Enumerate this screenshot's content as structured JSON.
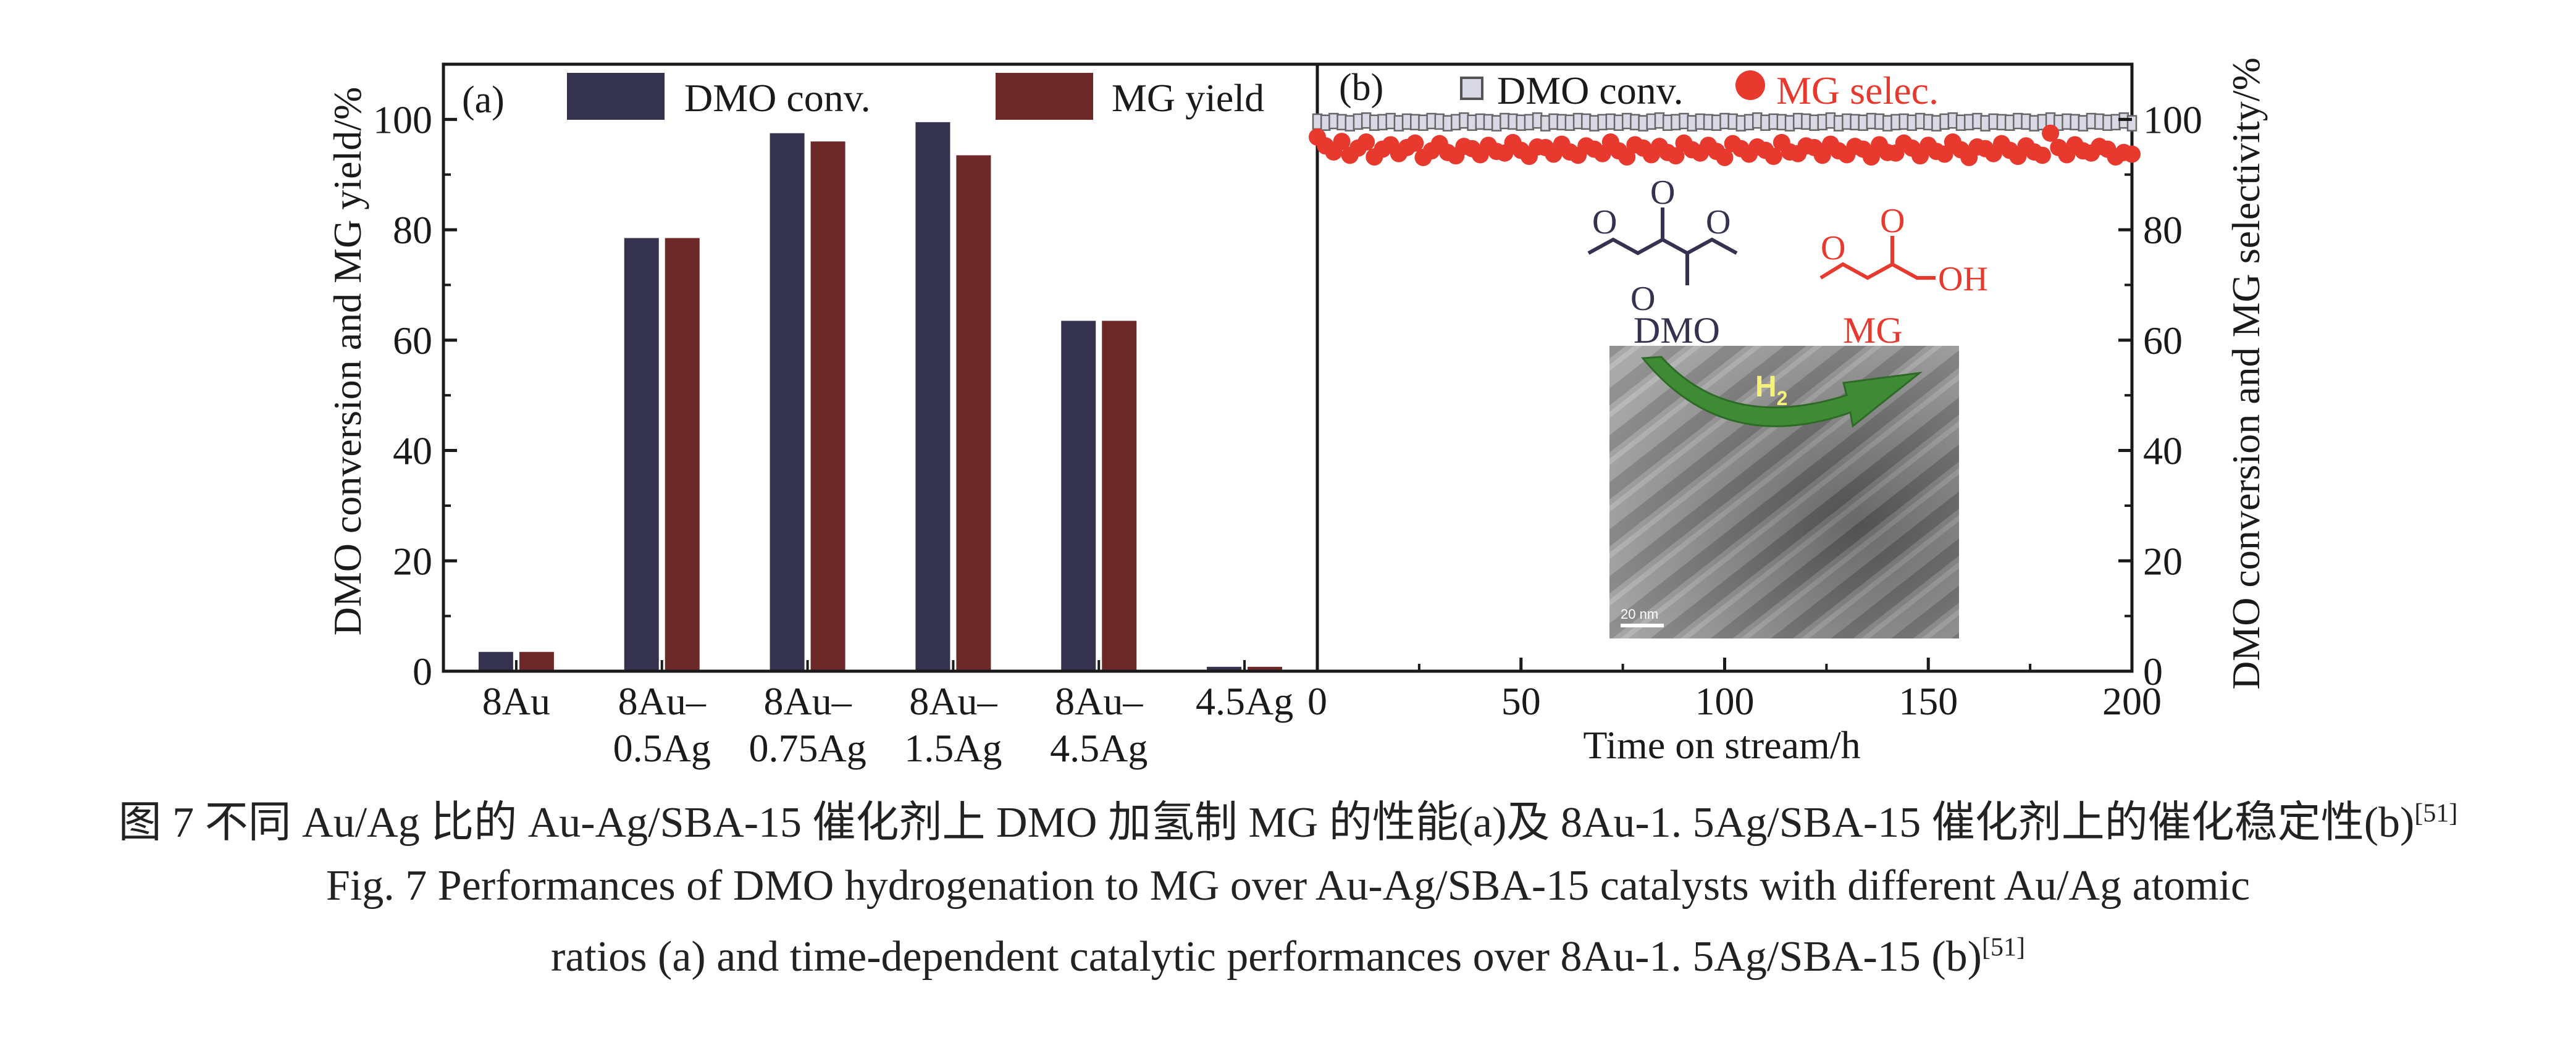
{
  "colors": {
    "dmo": "#35324f",
    "mg": "#6d2828",
    "mg_selec": "#e8392e",
    "dmo_marker_fill": "#d9d9e6",
    "axis": "#1a1a1a",
    "arrow": "#3f8a35"
  },
  "panel_a": {
    "label": "(a)",
    "ylabel": "DMO conversion and MG yield/%",
    "legend": [
      "DMO conv.",
      "MG yield"
    ]
  },
  "panel_b": {
    "label": "(b)",
    "xlabel": "Time on stream/h",
    "ylabel": "DMO conversion and MG selectivity/%",
    "legend": [
      "DMO conv.",
      "MG selec."
    ],
    "inset": {
      "dmo_label": "DMO",
      "mg_label": "MG",
      "mg_oh_label": "OH",
      "o_label": "O",
      "h2_label": "H",
      "h2_sub": "2",
      "scale_label": "20 nm"
    }
  },
  "caption": {
    "cn": "图 7   不同 Au/Ag 比的 Au-Ag/SBA-15 催化剂上 DMO 加氢制 MG 的性能(a)及 8Au-1. 5Ag/SBA-15 催化剂上的催化稳定性(b)",
    "cn_ref": "[51]",
    "en_line1": "Fig. 7  Performances of DMO hydrogenation to MG over Au-Ag/SBA-15 catalysts with different Au/Ag atomic",
    "en_line2": "ratios (a) and time-dependent catalytic performances over 8Au-1. 5Ag/SBA-15 (b)",
    "en_ref": "[51]"
  },
  "chart_data": [
    {
      "type": "bar",
      "panel": "a",
      "categories": [
        "8Au",
        "8Au–\n0.5Ag",
        "8Au–\n0.75Ag",
        "8Au–\n1.5Ag",
        "8Au–\n4.5Ag",
        "4.5Ag"
      ],
      "series": [
        {
          "name": "DMO conv.",
          "values": [
            3.5,
            78.5,
            97.5,
            99.5,
            63.5,
            0.8
          ]
        },
        {
          "name": "MG yield",
          "values": [
            3.5,
            78.5,
            96.0,
            93.5,
            63.5,
            0.8
          ]
        }
      ],
      "ylim": [
        0,
        110
      ],
      "yticks": [
        0,
        20,
        40,
        60,
        80,
        100
      ],
      "ytick_labels": [
        "0",
        "20",
        "40",
        "60",
        "80",
        "100"
      ],
      "ylabel": "DMO conversion and MG yield/%",
      "legend_position": "top"
    },
    {
      "type": "scatter",
      "panel": "b",
      "x_range": [
        0,
        200
      ],
      "xticks": [
        0,
        50,
        100,
        150,
        200
      ],
      "xtick_labels": [
        "0",
        "50",
        "100",
        "150",
        "200"
      ],
      "ylim": [
        0,
        110
      ],
      "yticks": [
        0,
        20,
        40,
        60,
        80,
        100
      ],
      "ytick_labels": [
        "0",
        "20",
        "40",
        "60",
        "80",
        "100"
      ],
      "xlabel": "Time on stream/h",
      "ylabel": "DMO conversion and MG selectivity/%",
      "legend_position": "top",
      "series": [
        {
          "name": "DMO conv.",
          "marker": "square",
          "sample_interval_h": 2,
          "approx_value": 99.5,
          "values": [
            99.6,
            99.4,
            99.7,
            99.5,
            99.3,
            99.6,
            99.8,
            99.4,
            99.5,
            99.7,
            99.3,
            99.6,
            99.5,
            99.4,
            99.7,
            99.6,
            99.3,
            99.5,
            99.8,
            99.4,
            99.6,
            99.5,
            99.3,
            99.7,
            99.6,
            99.4,
            99.5,
            99.8,
            99.3,
            99.6,
            99.5,
            99.4,
            99.7,
            99.6,
            99.3,
            99.5,
            99.6,
            99.4,
            99.7,
            99.5,
            99.3,
            99.6,
            99.8,
            99.4,
            99.5,
            99.7,
            99.3,
            99.6,
            99.5,
            99.4,
            99.7,
            99.6,
            99.3,
            99.5,
            99.8,
            99.4,
            99.6,
            99.5,
            99.3,
            99.7,
            99.6,
            99.4,
            99.5,
            99.8,
            99.3,
            99.6,
            99.5,
            99.4,
            99.7,
            99.6,
            99.3,
            99.5,
            99.6,
            99.4,
            99.7,
            99.5,
            99.3,
            99.6,
            99.8,
            99.4,
            99.5,
            99.7,
            99.3,
            99.6,
            99.5,
            99.4,
            99.7,
            99.6,
            99.3,
            99.5,
            99.8,
            99.4,
            99.6,
            99.5,
            99.3,
            99.7,
            99.6,
            99.4,
            99.5,
            99.8,
            99.3
          ]
        },
        {
          "name": "MG selec.",
          "marker": "circle",
          "sample_interval_h": 2,
          "approx_value": 94.5,
          "values": [
            96.8,
            95.2,
            94.1,
            96.0,
            93.5,
            94.8,
            95.9,
            93.2,
            94.6,
            95.4,
            93.8,
            94.9,
            95.7,
            93.1,
            94.3,
            95.6,
            94.0,
            93.4,
            95.1,
            94.7,
            93.6,
            95.3,
            94.2,
            93.9,
            95.8,
            94.4,
            93.3,
            95.0,
            94.9,
            93.7,
            95.5,
            94.1,
            93.5,
            95.2,
            94.6,
            93.8,
            95.9,
            94.3,
            93.2,
            95.4,
            94.8,
            93.6,
            95.1,
            94.0,
            93.4,
            95.7,
            94.5,
            93.9,
            95.3,
            94.2,
            93.1,
            95.6,
            94.7,
            93.7,
            95.0,
            94.4,
            93.3,
            95.8,
            94.1,
            93.8,
            95.2,
            94.9,
            93.5,
            95.5,
            94.3,
            93.6,
            95.1,
            94.6,
            93.2,
            95.4,
            94.0,
            93.9,
            95.7,
            94.8,
            93.4,
            95.3,
            94.2,
            93.7,
            95.9,
            94.5,
            93.1,
            95.0,
            94.7,
            93.8,
            95.6,
            94.4,
            93.3,
            95.2,
            94.1,
            93.5,
            97.5,
            94.9,
            93.6,
            95.4,
            94.3,
            93.9,
            95.1,
            94.6,
            93.2,
            94.0,
            93.7
          ]
        }
      ]
    }
  ]
}
